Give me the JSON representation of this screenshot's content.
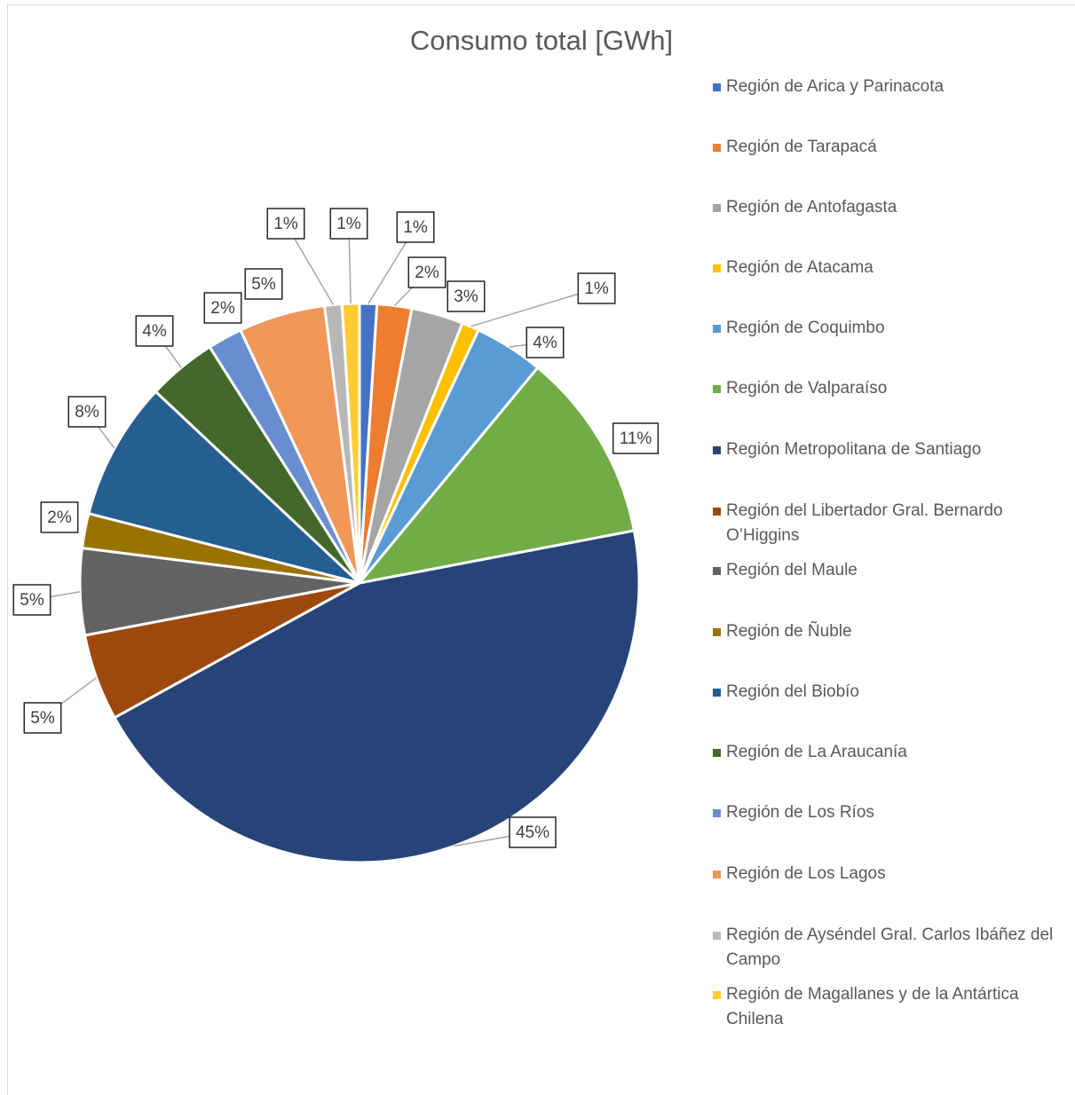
{
  "chart_data": {
    "type": "pie",
    "title": "Consumo total [GWh]",
    "categories": [
      "Región de Arica y Parinacota",
      "Región de Tarapacá",
      "Región de Antofagasta",
      "Región de Atacama",
      "Región de Coquimbo",
      "Región de Valparaíso",
      "Región Metropolitana de Santiago",
      "Región del Libertador Gral. Bernardo O’Higgins",
      "Región del Maule",
      "Región de Ñuble",
      "Región del Biobío",
      "Región de La Araucanía",
      "Región de Los Ríos",
      "Región de Los Lagos",
      "Región de Aysén­del Gral. Carlos Ibáñez del Campo",
      "Región de Magallanes y de la Antártica Chilena"
    ],
    "values": [
      1,
      2,
      3,
      1,
      4,
      11,
      45,
      5,
      5,
      2,
      8,
      4,
      2,
      5,
      1,
      1
    ],
    "value_labels": [
      "1%",
      "2%",
      "3%",
      "1%",
      "4%",
      "11%",
      "45%",
      "5%",
      "5%",
      "2%",
      "8%",
      "4%",
      "2%",
      "5%",
      "1%",
      "1%"
    ],
    "colors": [
      "#4472c4",
      "#ed7d31",
      "#a5a5a5",
      "#ffc000",
      "#5b9bd5",
      "#70ad47",
      "#264478",
      "#9e480e",
      "#636363",
      "#997300",
      "#255e91",
      "#43682b",
      "#698ed0",
      "#f1975a",
      "#b7b7b7",
      "#ffcd33"
    ],
    "legend": "right"
  }
}
